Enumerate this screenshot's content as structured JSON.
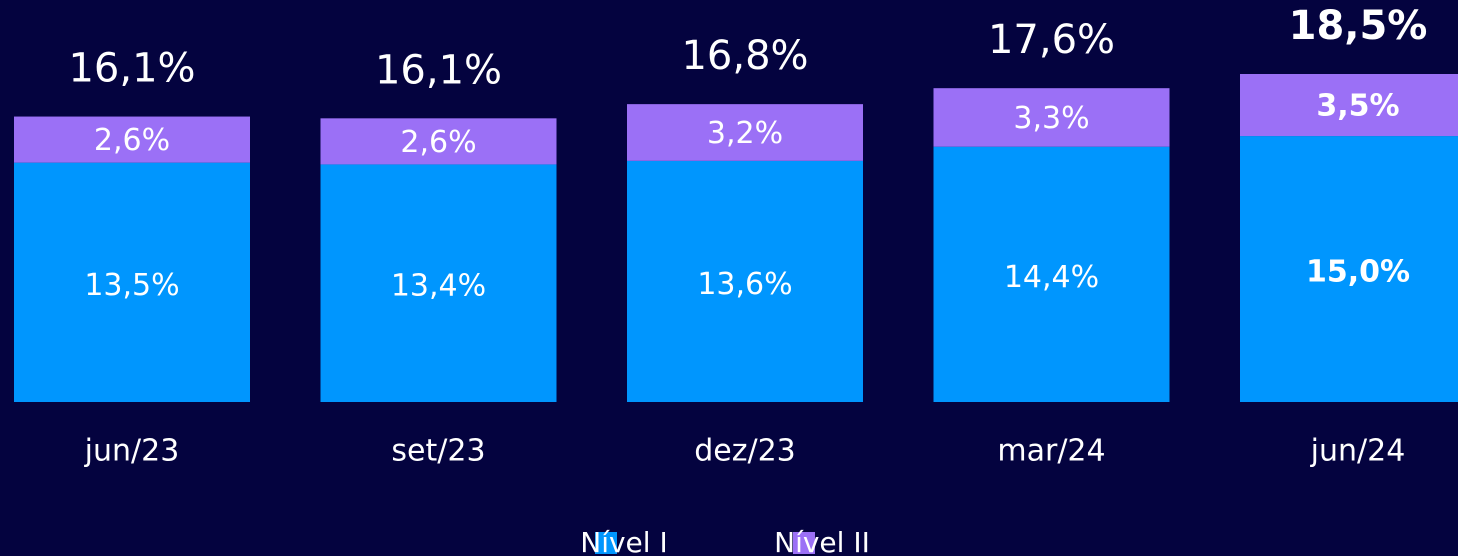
{
  "chart_data": {
    "type": "stacked_bar",
    "categories": [
      "jun/23",
      "set/23",
      "dez/23",
      "mar/24",
      "jun/24"
    ],
    "series": [
      {
        "name": "Nível I",
        "color": "#0096fe",
        "values": [
          13.5,
          13.4,
          13.6,
          14.4,
          15.0
        ],
        "value_labels": [
          "13,5%",
          "13,4%",
          "13,6%",
          "14,4%",
          "15,0%"
        ]
      },
      {
        "name": "Nível II",
        "color": "#9b70f6",
        "values": [
          2.6,
          2.6,
          3.2,
          3.3,
          3.5
        ],
        "value_labels": [
          "2,6%",
          "2,6%",
          "3,2%",
          "3,3%",
          "3,5%"
        ]
      }
    ],
    "totals": [
      16.1,
      16.1,
      16.8,
      17.6,
      18.5
    ],
    "total_labels": [
      "16,1%",
      "16,1%",
      "16,8%",
      "17,6%",
      "18,5%"
    ],
    "emphasis_index": 4,
    "legend": "bottom"
  }
}
